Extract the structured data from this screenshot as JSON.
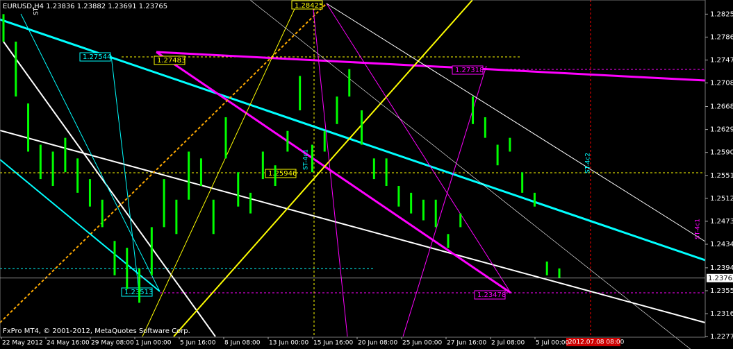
{
  "chart_data": {
    "type": "hlbar",
    "title": "EURUSD,H4  1.23836 1.23882 1.23691 1.23765",
    "footer": "FxPro MT4, © 2001-2012, MetaQuotes Software Corp.",
    "color": "#00ff00",
    "categories": [
      "22 May 2012",
      "24 May 16:00",
      "29 May 08:00",
      "1 Jun 00:00",
      "5 Jun 16:00",
      "8 Jun 08:00",
      "13 Jun 00:00",
      "15 Jun 16:00",
      "20 Jun 08:00",
      "25 Jun 00:00",
      "27 Jun 16:00",
      "2 Jul 08:00",
      "5 Jul 00:00"
    ],
    "high": [
      1.2825,
      1.27783,
      1.26732,
      1.26031,
      1.25914,
      1.26148,
      1.25798,
      1.25447,
      1.25097,
      1.24396,
      1.24279,
      1.23929,
      1.2463,
      1.25447,
      1.25097,
      1.25914,
      1.25798,
      1.25097,
      1.26498,
      1.25564,
      1.25214,
      1.25914,
      1.25681,
      1.26265,
      1.27199,
      1.26031,
      1.26265,
      1.26849,
      1.27316,
      1.26615,
      1.25798,
      1.25798,
      1.2533,
      1.25214,
      1.25097,
      1.25097,
      1.24513,
      1.24863,
      1.26849,
      1.26498,
      1.26031,
      1.26148,
      1.25564,
      1.25214,
      1.24046,
      1.23929
    ],
    "low": [
      1.27783,
      1.26849,
      1.25914,
      1.25447,
      1.2533,
      1.25564,
      1.25214,
      1.2498,
      1.2463,
      1.23812,
      1.23578,
      1.23345,
      1.23812,
      1.2463,
      1.24513,
      1.25097,
      1.2533,
      1.24513,
      1.25798,
      1.2498,
      1.24863,
      1.25447,
      1.2533,
      1.25914,
      1.26615,
      1.25564,
      1.25914,
      1.26382,
      1.26849,
      1.26031,
      1.25447,
      1.2533,
      1.2498,
      1.24863,
      1.24746,
      1.2463,
      1.24279,
      1.2463,
      1.26382,
      1.26148,
      1.25681,
      1.25914,
      1.25214,
      1.2498,
      1.23812,
      1.23765
    ],
    "current_price": {
      "value": 1.23765,
      "label": "1.23765"
    },
    "ylim": [
      1.2276,
      1.2849
    ],
    "yticks": [
      {
        "value": 1.2825,
        "label": "1.28250"
      },
      {
        "value": 1.2786,
        "label": "1.27860"
      },
      {
        "value": 1.2747,
        "label": "1.27470"
      },
      {
        "value": 1.2708,
        "label": "1.27080"
      },
      {
        "value": 1.2668,
        "label": "1.26680"
      },
      {
        "value": 1.2629,
        "label": "1.26290"
      },
      {
        "value": 1.259,
        "label": "1.25900"
      },
      {
        "value": 1.2551,
        "label": "1.25510"
      },
      {
        "value": 1.2512,
        "label": "1.25120"
      },
      {
        "value": 1.2473,
        "label": "1.24730"
      },
      {
        "value": 1.2434,
        "label": "1.24340"
      },
      {
        "value": 1.2394,
        "label": "1.23940"
      },
      {
        "value": 1.2355,
        "label": "1.23550"
      },
      {
        "value": 1.2316,
        "label": "1.23160"
      },
      {
        "value": 1.2277,
        "label": "1.22770"
      }
    ],
    "time_marker": "2012.07.08 08:00",
    "annotations": [
      "1.28425",
      "1.27544",
      "1.27483",
      "1.27318",
      "1.25946",
      "1.23513",
      "1.23478"
    ],
    "object_names": [
      "ST-4c1",
      "ST-4c2",
      "ST-4c1",
      "ST"
    ]
  }
}
